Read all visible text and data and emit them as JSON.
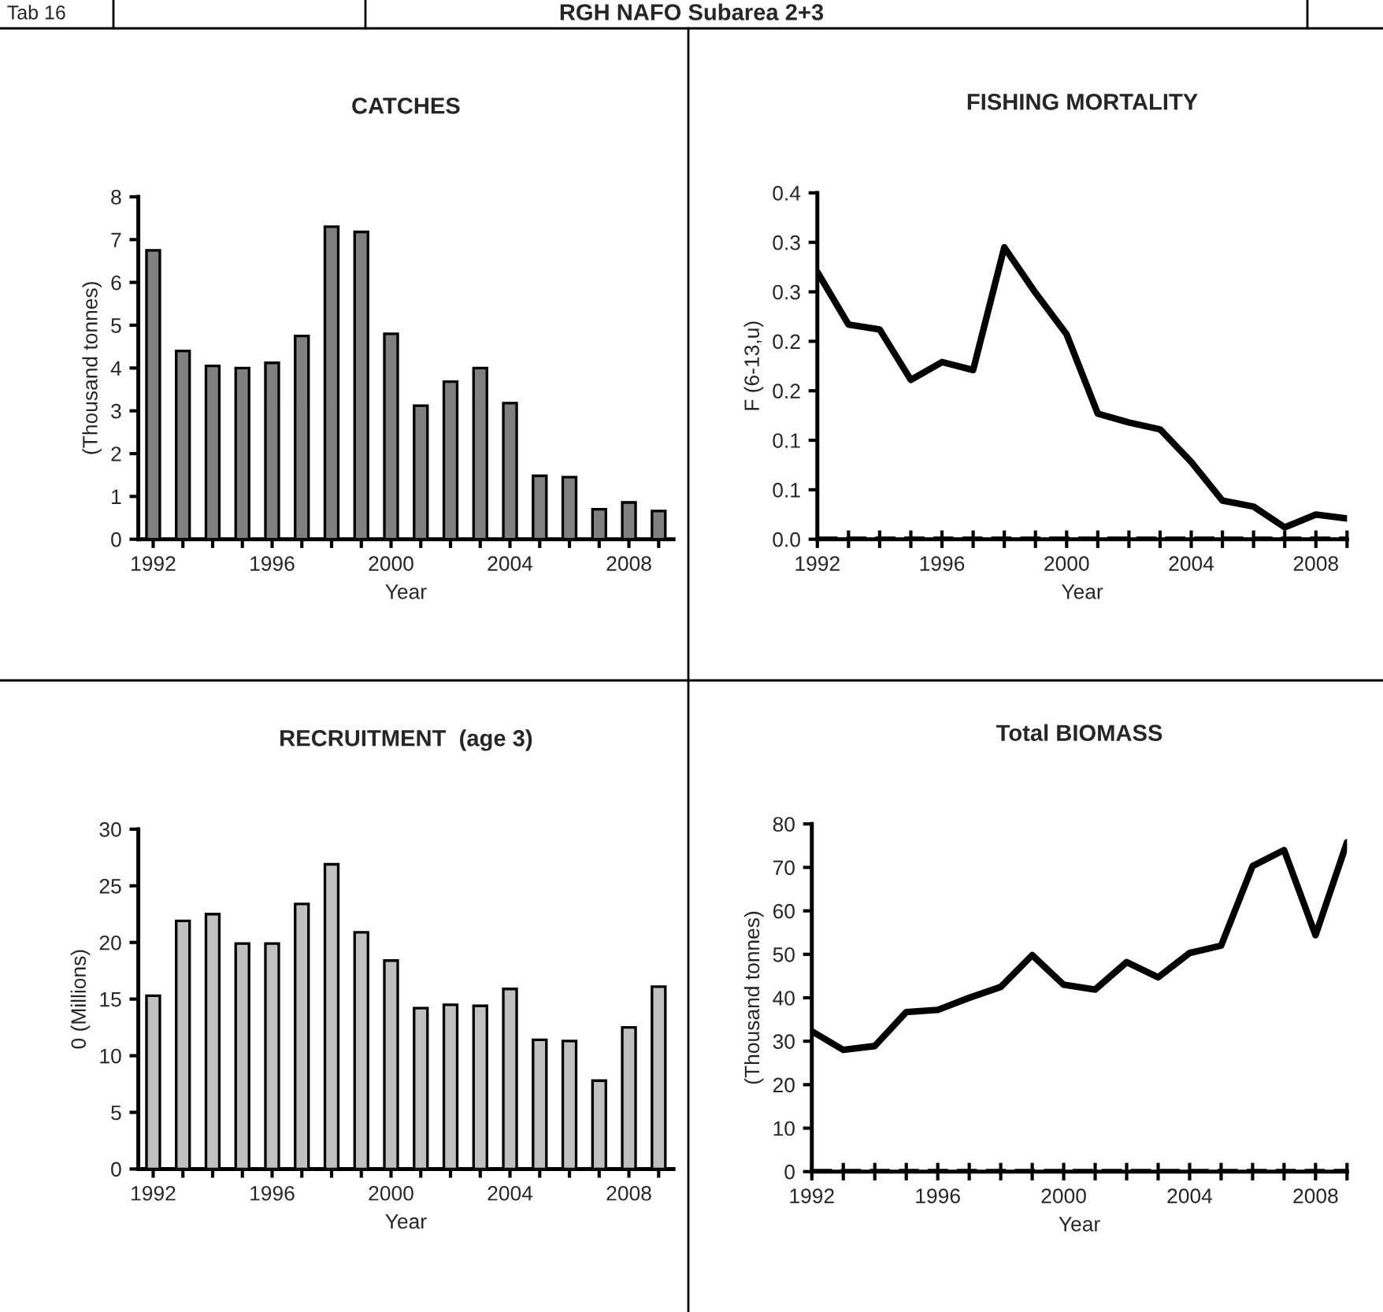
{
  "chart_data": [
    {
      "type": "other",
      "title": "RGH NAFO Subarea 2+3",
      "annotations": [
        "Tab 16"
      ]
    },
    {
      "type": "bar",
      "title": "CATCHES",
      "xlabel": "Year",
      "ylabel": "(Thousand tonnes)",
      "color": "#808080",
      "categories": [
        "1992",
        null,
        null,
        null,
        "1996",
        null,
        null,
        null,
        "2000",
        null,
        null,
        null,
        "2004",
        null,
        null,
        null,
        "2008",
        null
      ],
      "values": [
        6.75,
        4.4,
        4.05,
        4.0,
        4.12,
        4.75,
        7.3,
        7.18,
        4.8,
        3.12,
        3.68,
        4.0,
        3.18,
        1.48,
        1.45,
        0.7,
        0.86,
        0.66
      ],
      "ylim": [
        0,
        8
      ],
      "yticks": [
        0,
        1,
        2,
        3,
        4,
        5,
        6,
        7,
        8
      ]
    },
    {
      "type": "line",
      "title": "FISHING MORTALITY",
      "xlabel": "Year",
      "ylabel": "F (6-13,u)",
      "color": "#000000",
      "x": [
        1992,
        1993,
        1994,
        1995,
        1996,
        1997,
        1998,
        1999,
        2000,
        2001,
        2002,
        2003,
        2004,
        2005,
        2006,
        2007,
        2008,
        2009
      ],
      "values": [
        0.27,
        0.217,
        0.212,
        0.161,
        0.179,
        0.171,
        0.295,
        0.249,
        0.207,
        0.127,
        0.118,
        0.111,
        0.078,
        0.039,
        0.033,
        0.012,
        0.025,
        0.021
      ],
      "xlim": [
        1992,
        2009
      ],
      "xticks": [
        1992,
        {
          "value": 1993,
          "label": null
        },
        {
          "value": 1994,
          "label": null
        },
        {
          "value": 1995,
          "label": null
        },
        1996,
        {
          "value": 1997,
          "label": null
        },
        {
          "value": 1998,
          "label": null
        },
        {
          "value": 1999,
          "label": null
        },
        2000,
        {
          "value": 2001,
          "label": null
        },
        {
          "value": 2002,
          "label": null
        },
        {
          "value": 2003,
          "label": null
        },
        2004,
        {
          "value": 2005,
          "label": null
        },
        {
          "value": 2006,
          "label": null
        },
        {
          "value": 2007,
          "label": null
        },
        2008,
        {
          "value": 2009,
          "label": null
        }
      ],
      "ylim": [
        0,
        0.35
      ],
      "yticks": [
        {
          "value": 0,
          "label": "0.0"
        },
        {
          "value": 0.05,
          "label": "0.1"
        },
        {
          "value": 0.1,
          "label": "0.1"
        },
        {
          "value": 0.15,
          "label": "0.2"
        },
        {
          "value": 0.2,
          "label": "0.2"
        },
        {
          "value": 0.25,
          "label": "0.3"
        },
        {
          "value": 0.3,
          "label": "0.3"
        },
        {
          "value": 0.35,
          "label": "0.4"
        }
      ],
      "ref_lines": [
        {
          "axis": "y",
          "value": 0,
          "color": "#000000",
          "line_style": "dashed"
        }
      ]
    },
    {
      "type": "bar",
      "title": "RECRUITMENT  (age 3)",
      "xlabel": "Year",
      "ylabel": "0 (Millions)",
      "color": "#c0c0c0",
      "categories": [
        "1992",
        null,
        null,
        null,
        "1996",
        null,
        null,
        null,
        "2000",
        null,
        null,
        null,
        "2004",
        null,
        null,
        null,
        "2008",
        null
      ],
      "values": [
        15.3,
        21.9,
        22.5,
        19.9,
        19.9,
        23.4,
        26.9,
        20.9,
        18.4,
        14.2,
        14.5,
        14.4,
        15.9,
        11.4,
        11.3,
        7.8,
        12.5,
        16.1
      ],
      "ylim": [
        0,
        30
      ],
      "yticks": [
        0,
        5,
        10,
        15,
        20,
        25,
        30
      ]
    },
    {
      "type": "line",
      "title": "Total BIOMASS",
      "xlabel": "Year",
      "ylabel": "(Thousand tonnes)",
      "color": "#000000",
      "x": [
        1992,
        1993,
        1994,
        1995,
        1996,
        1997,
        1998,
        1999,
        2000,
        2001,
        2002,
        2003,
        2004,
        2005,
        2006,
        2007,
        2008,
        2009
      ],
      "values": [
        32.3,
        28.0,
        28.9,
        36.7,
        37.2,
        40.0,
        42.5,
        49.8,
        43.0,
        41.9,
        48.2,
        44.7,
        50.3,
        52.0,
        70.3,
        74.0,
        54.4,
        75.8
      ],
      "xlim": [
        1992,
        2009
      ],
      "xticks": [
        1992,
        {
          "value": 1993,
          "label": null
        },
        {
          "value": 1994,
          "label": null
        },
        {
          "value": 1995,
          "label": null
        },
        1996,
        {
          "value": 1997,
          "label": null
        },
        {
          "value": 1998,
          "label": null
        },
        {
          "value": 1999,
          "label": null
        },
        2000,
        {
          "value": 2001,
          "label": null
        },
        {
          "value": 2002,
          "label": null
        },
        {
          "value": 2003,
          "label": null
        },
        2004,
        {
          "value": 2005,
          "label": null
        },
        {
          "value": 2006,
          "label": null
        },
        {
          "value": 2007,
          "label": null
        },
        2008,
        {
          "value": 2009,
          "label": null
        }
      ],
      "ylim": [
        0,
        80
      ],
      "yticks": [
        0,
        10,
        20,
        30,
        40,
        50,
        60,
        70,
        80
      ],
      "ref_lines": [
        {
          "axis": "y",
          "value": 0,
          "color": "#000000",
          "line_style": "dashed"
        }
      ]
    }
  ]
}
